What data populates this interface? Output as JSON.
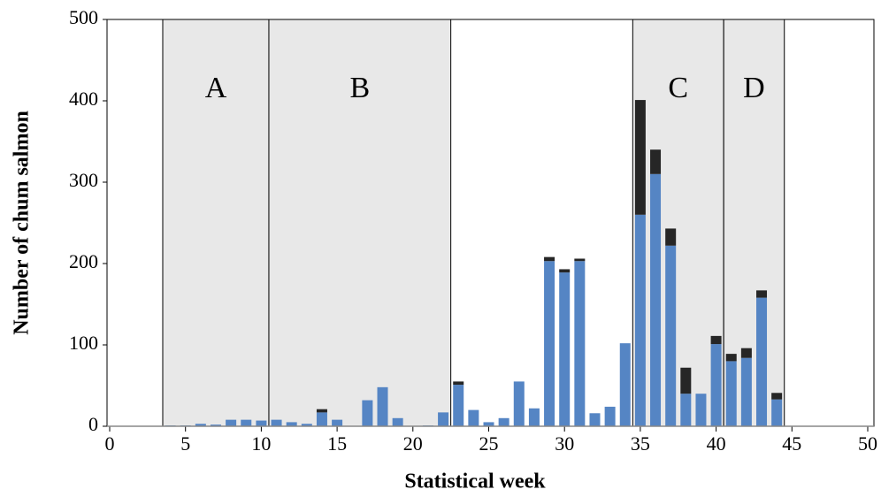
{
  "chart_data": {
    "type": "stacked-bar",
    "xlabel": "Statistical week",
    "ylabel": "Number of chum salmon",
    "x": [
      4,
      5,
      6,
      7,
      8,
      9,
      10,
      11,
      12,
      13,
      14,
      15,
      16,
      17,
      18,
      19,
      20,
      21,
      22,
      23,
      24,
      25,
      26,
      27,
      28,
      29,
      30,
      31,
      32,
      33,
      34,
      35,
      36,
      37,
      38,
      39,
      40,
      41,
      42,
      43,
      44
    ],
    "series": [
      {
        "color": "#5585c4",
        "values": [
          1,
          1,
          3,
          2,
          8,
          8,
          7,
          8,
          5,
          3,
          17,
          8,
          0,
          32,
          48,
          10,
          0,
          1,
          17,
          51,
          20,
          5,
          10,
          55,
          22,
          203,
          189,
          203,
          16,
          24,
          102,
          260,
          310,
          222,
          40,
          40,
          101,
          80,
          84,
          158,
          33
        ]
      },
      {
        "color": "#262626",
        "values": [
          0,
          0,
          0,
          0,
          0,
          0,
          0,
          0,
          0,
          0,
          4,
          0,
          0,
          0,
          0,
          0,
          0,
          0,
          0,
          4,
          0,
          0,
          0,
          0,
          0,
          5,
          4,
          3,
          0,
          0,
          0,
          141,
          30,
          21,
          32,
          0,
          10,
          9,
          12,
          9,
          8
        ]
      }
    ],
    "regions": [
      {
        "label": "A",
        "start": 3.5,
        "end": 10.5
      },
      {
        "label": "B",
        "start": 10.5,
        "end": 22.5
      },
      {
        "label": "C",
        "start": 34.5,
        "end": 40.5
      },
      {
        "label": "D",
        "start": 40.5,
        "end": 44.5
      }
    ],
    "region_color": "#e8e8e8",
    "xlim": [
      0,
      50
    ],
    "xticks": [
      0,
      5,
      10,
      15,
      20,
      25,
      30,
      35,
      40,
      45,
      50
    ],
    "ylim": [
      0,
      500
    ],
    "yticks": [
      0,
      100,
      200,
      300,
      400,
      500
    ]
  }
}
